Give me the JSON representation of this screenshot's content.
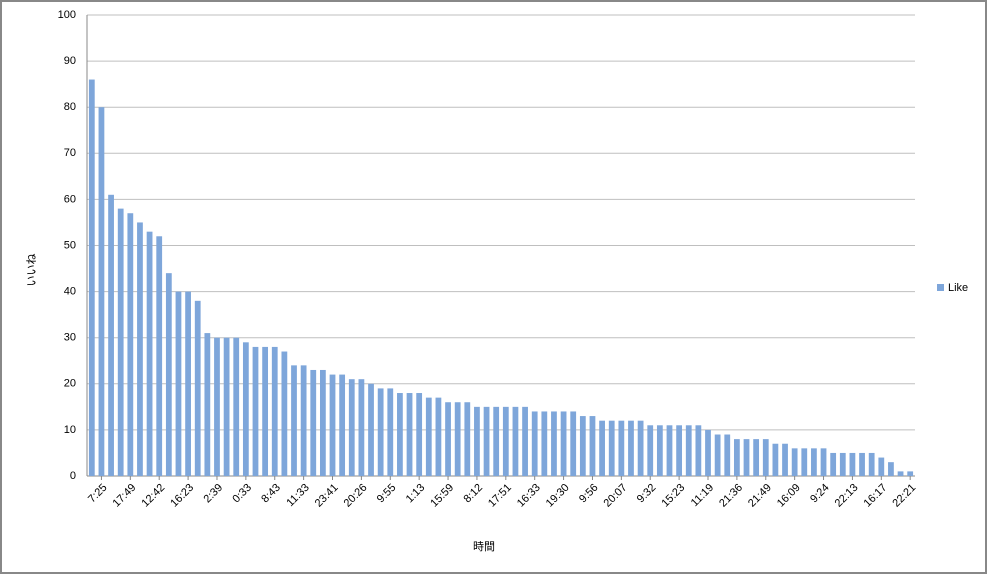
{
  "chart_data": {
    "type": "bar",
    "y_axis_label": "いいね",
    "x_axis_label": "時間",
    "categories": [
      null,
      "7:25",
      null,
      null,
      "17:49",
      null,
      null,
      "12:42",
      null,
      null,
      "16:23",
      null,
      null,
      "2:39",
      null,
      null,
      "0:33",
      null,
      null,
      "8:43",
      null,
      null,
      "11:33",
      null,
      null,
      "23:41",
      null,
      null,
      "20:26",
      null,
      null,
      "9:55",
      null,
      null,
      "1:13",
      null,
      null,
      "15:59",
      null,
      null,
      "8:12",
      null,
      null,
      "17:51",
      null,
      null,
      "16:33",
      null,
      null,
      "19:30",
      null,
      null,
      "9:56",
      null,
      null,
      "20:07",
      null,
      null,
      "9:32",
      null,
      null,
      "15:23",
      null,
      null,
      "11:19",
      null,
      null,
      "21:36",
      null,
      null,
      "21:49",
      null,
      null,
      "16:09",
      null,
      null,
      "9:24",
      null,
      null,
      "22:13",
      null,
      null,
      "16:17",
      null,
      null,
      "22:21"
    ],
    "series": [
      {
        "name": "Like",
        "color": "#7ea6da",
        "values": [
          86,
          80,
          61,
          58,
          57,
          55,
          53,
          52,
          44,
          40,
          40,
          38,
          31,
          30,
          30,
          30,
          29,
          28,
          28,
          28,
          27,
          24,
          24,
          23,
          23,
          22,
          22,
          21,
          21,
          20,
          19,
          19,
          18,
          18,
          18,
          17,
          17,
          16,
          16,
          16,
          15,
          15,
          15,
          15,
          15,
          15,
          14,
          14,
          14,
          14,
          14,
          13,
          13,
          12,
          12,
          12,
          12,
          12,
          11,
          11,
          11,
          11,
          11,
          11,
          10,
          9,
          9,
          8,
          8,
          8,
          8,
          7,
          7,
          6,
          6,
          6,
          6,
          5,
          5,
          5,
          5,
          5,
          4,
          3,
          1,
          1
        ]
      }
    ],
    "ylim": [
      0,
      100
    ],
    "yticks": [
      0,
      10,
      20,
      30,
      40,
      50,
      60,
      70,
      80,
      90,
      100
    ],
    "grid": true,
    "legend": "right"
  }
}
